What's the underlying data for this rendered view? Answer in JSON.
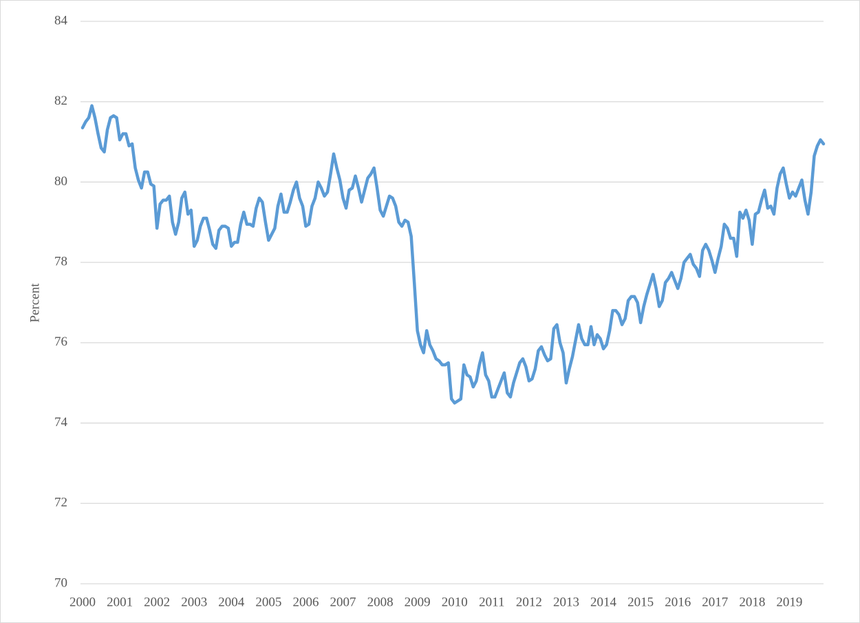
{
  "chart_data": {
    "type": "line",
    "y_label": "Percent",
    "categories": [
      "2000",
      null,
      null,
      null,
      null,
      null,
      null,
      null,
      null,
      null,
      null,
      null,
      "2001",
      null,
      null,
      null,
      null,
      null,
      null,
      null,
      null,
      null,
      null,
      null,
      "2002",
      null,
      null,
      null,
      null,
      null,
      null,
      null,
      null,
      null,
      null,
      null,
      "2003",
      null,
      null,
      null,
      null,
      null,
      null,
      null,
      null,
      null,
      null,
      null,
      "2004",
      null,
      null,
      null,
      null,
      null,
      null,
      null,
      null,
      null,
      null,
      null,
      "2005",
      null,
      null,
      null,
      null,
      null,
      null,
      null,
      null,
      null,
      null,
      null,
      "2006",
      null,
      null,
      null,
      null,
      null,
      null,
      null,
      null,
      null,
      null,
      null,
      "2007",
      null,
      null,
      null,
      null,
      null,
      null,
      null,
      null,
      null,
      null,
      null,
      "2008",
      null,
      null,
      null,
      null,
      null,
      null,
      null,
      null,
      null,
      null,
      null,
      "2009",
      null,
      null,
      null,
      null,
      null,
      null,
      null,
      null,
      null,
      null,
      null,
      "2010",
      null,
      null,
      null,
      null,
      null,
      null,
      null,
      null,
      null,
      null,
      null,
      "2011",
      null,
      null,
      null,
      null,
      null,
      null,
      null,
      null,
      null,
      null,
      null,
      "2012",
      null,
      null,
      null,
      null,
      null,
      null,
      null,
      null,
      null,
      null,
      null,
      "2013",
      null,
      null,
      null,
      null,
      null,
      null,
      null,
      null,
      null,
      null,
      null,
      "2014",
      null,
      null,
      null,
      null,
      null,
      null,
      null,
      null,
      null,
      null,
      null,
      "2015",
      null,
      null,
      null,
      null,
      null,
      null,
      null,
      null,
      null,
      null,
      null,
      "2016",
      null,
      null,
      null,
      null,
      null,
      null,
      null,
      null,
      null,
      null,
      null,
      "2017",
      null,
      null,
      null,
      null,
      null,
      null,
      null,
      null,
      null,
      null,
      null,
      "2018",
      null,
      null,
      null,
      null,
      null,
      null,
      null,
      null,
      null,
      null,
      null,
      "2019",
      null,
      null,
      null,
      null,
      null,
      null,
      null,
      null,
      null,
      null,
      null
    ],
    "values": [
      81.35,
      81.5,
      81.6,
      81.9,
      81.6,
      81.2,
      80.85,
      80.75,
      81.3,
      81.6,
      81.65,
      81.6,
      81.05,
      81.2,
      81.2,
      80.9,
      80.95,
      80.35,
      80.05,
      79.85,
      80.25,
      80.25,
      79.95,
      79.9,
      78.85,
      79.45,
      79.55,
      79.55,
      79.65,
      79.0,
      78.7,
      79.0,
      79.6,
      79.75,
      79.2,
      79.3,
      78.4,
      78.55,
      78.9,
      79.1,
      79.1,
      78.8,
      78.45,
      78.35,
      78.8,
      78.9,
      78.9,
      78.85,
      78.4,
      78.5,
      78.5,
      78.95,
      79.25,
      78.95,
      78.95,
      78.9,
      79.35,
      79.6,
      79.5,
      79.0,
      78.55,
      78.7,
      78.85,
      79.4,
      79.7,
      79.25,
      79.25,
      79.5,
      79.8,
      80.0,
      79.6,
      79.4,
      78.9,
      78.95,
      79.4,
      79.6,
      80.0,
      79.85,
      79.65,
      79.75,
      80.2,
      80.7,
      80.35,
      80.05,
      79.6,
      79.35,
      79.8,
      79.85,
      80.15,
      79.85,
      79.5,
      79.8,
      80.1,
      80.2,
      80.35,
      79.85,
      79.3,
      79.15,
      79.4,
      79.65,
      79.6,
      79.4,
      79.0,
      78.9,
      79.05,
      79.0,
      78.65,
      77.5,
      76.3,
      75.95,
      75.75,
      76.3,
      75.95,
      75.8,
      75.6,
      75.55,
      75.45,
      75.45,
      75.5,
      74.6,
      74.5,
      74.55,
      74.6,
      75.45,
      75.2,
      75.15,
      74.9,
      75.05,
      75.45,
      75.75,
      75.2,
      75.05,
      74.65,
      74.65,
      74.85,
      75.05,
      75.25,
      74.75,
      74.65,
      75.0,
      75.25,
      75.5,
      75.6,
      75.4,
      75.05,
      75.1,
      75.35,
      75.8,
      75.9,
      75.7,
      75.55,
      75.6,
      76.35,
      76.45,
      76.0,
      75.75,
      75.0,
      75.35,
      75.65,
      76.05,
      76.45,
      76.1,
      75.95,
      75.95,
      76.4,
      75.95,
      76.2,
      76.1,
      75.85,
      75.95,
      76.3,
      76.8,
      76.8,
      76.7,
      76.45,
      76.6,
      77.05,
      77.15,
      77.15,
      77.0,
      76.5,
      76.9,
      77.2,
      77.45,
      77.7,
      77.35,
      76.9,
      77.05,
      77.5,
      77.6,
      77.75,
      77.55,
      77.35,
      77.6,
      78.0,
      78.1,
      78.2,
      77.95,
      77.85,
      77.65,
      78.3,
      78.45,
      78.3,
      78.05,
      77.75,
      78.1,
      78.4,
      78.95,
      78.85,
      78.6,
      78.6,
      78.15,
      79.25,
      79.1,
      79.3,
      79.05,
      78.45,
      79.2,
      79.25,
      79.55,
      79.8,
      79.35,
      79.4,
      79.2,
      79.85,
      80.2,
      80.35,
      79.95,
      79.6,
      79.75,
      79.65,
      79.85,
      80.05,
      79.55,
      79.2,
      79.75,
      80.65,
      80.9,
      81.05,
      80.95
    ],
    "color": "#5b9bd5",
    "ylim": [
      70,
      84
    ],
    "yticks": [
      70,
      72,
      74,
      76,
      78,
      80,
      82,
      84
    ],
    "grid": true
  }
}
